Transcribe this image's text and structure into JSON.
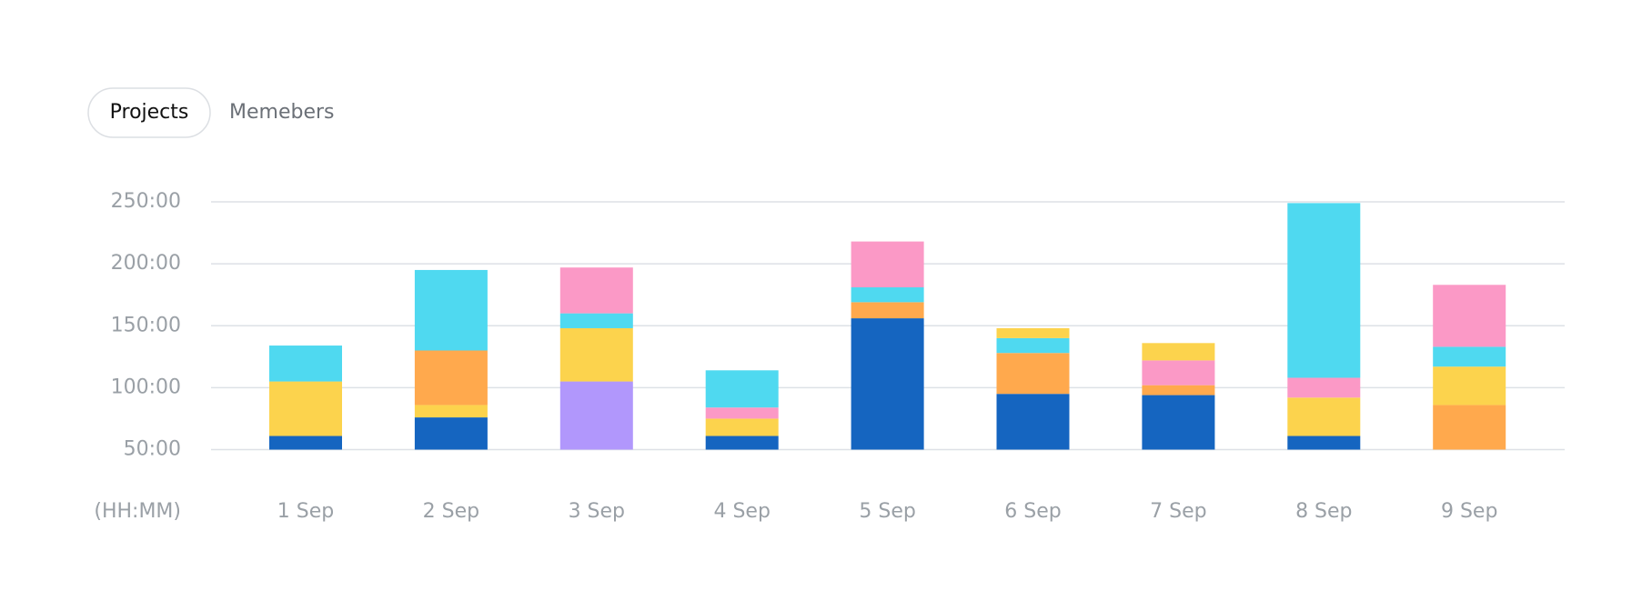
{
  "tabs": {
    "items": [
      "Projects",
      "Memebers"
    ],
    "active": 0
  },
  "chart_data": {
    "type": "stacked_bar",
    "y_label": "(HH:MM)",
    "categories": [
      "1 Sep",
      "2 Sep",
      "3 Sep",
      "4 Sep",
      "5 Sep",
      "6 Sep",
      "7 Sep",
      "8 Sep",
      "9 Sep"
    ],
    "stacks": [
      [
        {
          "color": "#1565c0",
          "value": 11
        },
        {
          "color": "#fcd34d",
          "value": 44
        },
        {
          "color": "#4fd9f0",
          "value": 29
        }
      ],
      [
        {
          "color": "#1565c0",
          "value": 26
        },
        {
          "color": "#fcd34d",
          "value": 10
        },
        {
          "color": "#ffa94d",
          "value": 44
        },
        {
          "color": "#4fd9f0",
          "value": 65
        }
      ],
      [
        {
          "color": "#b197fc",
          "value": 55
        },
        {
          "color": "#fcd34d",
          "value": 43
        },
        {
          "color": "#4fd9f0",
          "value": 12
        },
        {
          "color": "#fb99c6",
          "value": 37
        }
      ],
      [
        {
          "color": "#1565c0",
          "value": 11
        },
        {
          "color": "#fcd34d",
          "value": 14
        },
        {
          "color": "#fb99c6",
          "value": 9
        },
        {
          "color": "#4fd9f0",
          "value": 30
        }
      ],
      [
        {
          "color": "#1565c0",
          "value": 106
        },
        {
          "color": "#ffa94d",
          "value": 13
        },
        {
          "color": "#4fd9f0",
          "value": 12
        },
        {
          "color": "#fb99c6",
          "value": 37
        }
      ],
      [
        {
          "color": "#1565c0",
          "value": 45
        },
        {
          "color": "#ffa94d",
          "value": 33
        },
        {
          "color": "#4fd9f0",
          "value": 12
        },
        {
          "color": "#fcd34d",
          "value": 8
        }
      ],
      [
        {
          "color": "#1565c0",
          "value": 44
        },
        {
          "color": "#ffa94d",
          "value": 8
        },
        {
          "color": "#fb99c6",
          "value": 20
        },
        {
          "color": "#fcd34d",
          "value": 14
        }
      ],
      [
        {
          "color": "#1565c0",
          "value": 11
        },
        {
          "color": "#fcd34d",
          "value": 31
        },
        {
          "color": "#fb99c6",
          "value": 16
        },
        {
          "color": "#4fd9f0",
          "value": 141
        }
      ],
      [
        {
          "color": "#ffa94d",
          "value": 36
        },
        {
          "color": "#fcd34d",
          "value": 31
        },
        {
          "color": "#4fd9f0",
          "value": 16
        },
        {
          "color": "#fb99c6",
          "value": 50
        }
      ]
    ],
    "ylim": [
      50,
      250
    ],
    "yticks": [
      {
        "value": 50,
        "label": "50:00"
      },
      {
        "value": 100,
        "label": "100:00"
      },
      {
        "value": 150,
        "label": "150:00"
      },
      {
        "value": 200,
        "label": "200:00"
      },
      {
        "value": 250,
        "label": "250:00"
      }
    ],
    "grid": true
  }
}
